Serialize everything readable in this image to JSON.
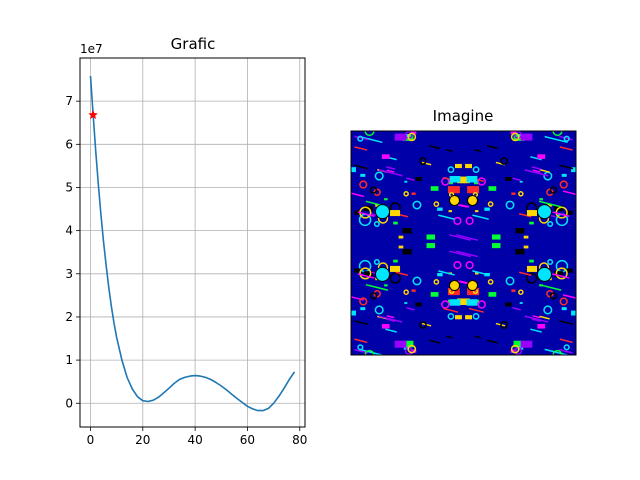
{
  "chart_data": [
    {
      "type": "line",
      "title": "Grafic",
      "xlabel": "",
      "ylabel": "",
      "offset_text": "1e7",
      "xlim": [
        -4,
        82
      ],
      "ylim": [
        -0.55,
        8.0
      ],
      "xticks": [
        0,
        20,
        40,
        60,
        80
      ],
      "xtick_labels": [
        "0",
        "20",
        "40",
        "60",
        "80"
      ],
      "yticks": [
        0,
        1,
        2,
        3,
        4,
        5,
        6,
        7
      ],
      "ytick_labels": [
        "0",
        "1",
        "2",
        "3",
        "4",
        "5",
        "6",
        "7"
      ],
      "grid": true,
      "line_color": "#1f77b4",
      "series": [
        {
          "x": [
            0,
            1,
            2,
            3,
            4,
            5,
            6,
            7,
            8,
            9,
            10,
            12,
            14,
            16,
            18,
            20,
            22,
            24,
            26,
            28,
            30,
            32,
            34,
            36,
            38,
            40,
            42,
            44,
            46,
            48,
            50,
            52,
            54,
            56,
            58,
            60,
            62,
            64,
            66,
            68,
            70,
            72,
            74,
            76,
            78
          ],
          "y": [
            7.58,
            6.7,
            5.85,
            5.08,
            4.38,
            3.75,
            3.18,
            2.68,
            2.24,
            1.86,
            1.53,
            1.0,
            0.6,
            0.33,
            0.15,
            0.06,
            0.04,
            0.07,
            0.14,
            0.24,
            0.35,
            0.46,
            0.55,
            0.6,
            0.63,
            0.64,
            0.63,
            0.6,
            0.55,
            0.48,
            0.4,
            0.31,
            0.21,
            0.11,
            0.02,
            -0.07,
            -0.13,
            -0.17,
            -0.17,
            -0.12,
            0.0,
            0.16,
            0.35,
            0.55,
            0.73
          ]
        }
      ],
      "marker": {
        "x": 1,
        "y": 6.68,
        "shape": "star",
        "color": "#ff0000"
      }
    }
  ],
  "image_panel": {
    "title": "Imagine",
    "description_colors": [
      "#0000a8",
      "#00e5ff",
      "#ff00ff",
      "#00ff33",
      "#ffd700",
      "#9b00ff",
      "#ff2a2a",
      "#000000"
    ]
  }
}
